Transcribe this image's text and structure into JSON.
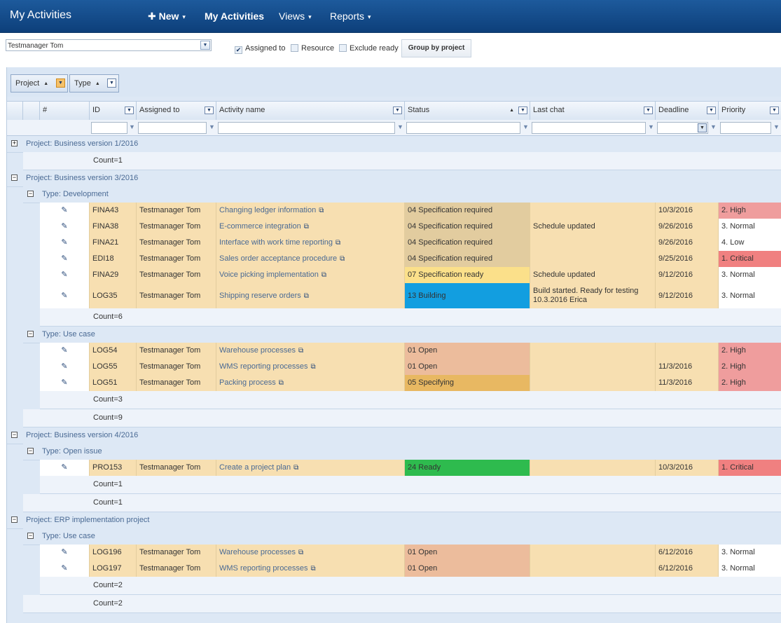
{
  "app": {
    "title": "My Activities",
    "nav": [
      {
        "label": "New",
        "icon": "plus-icon",
        "caret": "▾"
      },
      {
        "label": "My Activities"
      },
      {
        "label": "Views",
        "caret": "▾"
      },
      {
        "label": "Reports",
        "caret": "▾"
      }
    ]
  },
  "toolbar": {
    "user_select": "Testmanager Tom",
    "assigned_to": {
      "label": "Assigned to",
      "checked": true
    },
    "resource": {
      "label": "Resource",
      "checked": false
    },
    "exclude_ready": {
      "label": "Exclude ready",
      "checked": false
    },
    "group_button": "Group by project"
  },
  "grouping": [
    {
      "label": "Project"
    },
    {
      "label": "Type"
    }
  ],
  "columns": {
    "hash": "#",
    "id": "ID",
    "assigned": "Assigned to",
    "activity": "Activity name",
    "status": "Status",
    "lastchat": "Last chat",
    "deadline": "Deadline",
    "priority": "Priority"
  },
  "groups": [
    {
      "label": "Project: Business version 1/2016",
      "expanded": false,
      "count": "Count=1"
    },
    {
      "label": "Project: Business version 3/2016",
      "expanded": true,
      "count": "Count=9",
      "types": [
        {
          "label": "Type: Development",
          "count": "Count=6",
          "rows": [
            {
              "id": "FINA43",
              "assigned": "Testmanager Tom",
              "activity": "Changing ledger information",
              "status": "04 Specification required",
              "lastchat": "",
              "deadline": "10/3/2016",
              "priority": "2. High"
            },
            {
              "id": "FINA38",
              "assigned": "Testmanager Tom",
              "activity": "E-commerce integration",
              "status": "04 Specification required",
              "lastchat": "Schedule updated",
              "deadline": "9/26/2016",
              "priority": "3. Normal"
            },
            {
              "id": "FINA21",
              "assigned": "Testmanager Tom",
              "activity": "Interface with work time reporting",
              "status": "04 Specification required",
              "lastchat": "",
              "deadline": "9/26/2016",
              "priority": "4. Low"
            },
            {
              "id": "EDI18",
              "assigned": "Testmanager Tom",
              "activity": "Sales order acceptance procedure",
              "status": "04 Specification required",
              "lastchat": "",
              "deadline": "9/25/2016",
              "priority": "1. Critical"
            },
            {
              "id": "FINA29",
              "assigned": "Testmanager Tom",
              "activity": "Voice picking implementation",
              "status": "07 Specification ready",
              "lastchat": "Schedule updated",
              "deadline": "9/12/2016",
              "priority": "3. Normal"
            },
            {
              "id": "LOG35",
              "assigned": "Testmanager Tom",
              "activity": "Shipping reserve orders",
              "status": "13 Building",
              "lastchat": "Build started. Ready for testing 10.3.2016 Erica",
              "deadline": "9/12/2016",
              "priority": "3. Normal"
            }
          ]
        },
        {
          "label": "Type: Use case",
          "count": "Count=3",
          "rows": [
            {
              "id": "LOG54",
              "assigned": "Testmanager Tom",
              "activity": "Warehouse processes",
              "status": "01 Open",
              "lastchat": "",
              "deadline": "",
              "priority": "2. High"
            },
            {
              "id": "LOG55",
              "assigned": "Testmanager Tom",
              "activity": "WMS reporting processes",
              "status": "01 Open",
              "lastchat": "",
              "deadline": "11/3/2016",
              "priority": "2. High"
            },
            {
              "id": "LOG51",
              "assigned": "Testmanager Tom",
              "activity": "Packing process",
              "status": "05 Specifying",
              "lastchat": "",
              "deadline": "11/3/2016",
              "priority": "2. High"
            }
          ]
        }
      ]
    },
    {
      "label": "Project: Business version 4/2016",
      "expanded": true,
      "count": "Count=1",
      "types": [
        {
          "label": "Type: Open issue",
          "count": "Count=1",
          "rows": [
            {
              "id": "PRO153",
              "assigned": "Testmanager Tom",
              "activity": "Create a project plan",
              "status": "24 Ready",
              "lastchat": "",
              "deadline": "10/3/2016",
              "priority": "1. Critical"
            }
          ]
        }
      ]
    },
    {
      "label": "Project: ERP implementation project",
      "expanded": true,
      "count": "Count=2",
      "types": [
        {
          "label": "Type: Use case",
          "count": "Count=2",
          "rows": [
            {
              "id": "LOG196",
              "assigned": "Testmanager Tom",
              "activity": "Warehouse processes",
              "status": "01 Open",
              "lastchat": "",
              "deadline": "6/12/2016",
              "priority": "3. Normal"
            },
            {
              "id": "LOG197",
              "assigned": "Testmanager Tom",
              "activity": "WMS reporting processes",
              "status": "01 Open",
              "lastchat": "",
              "deadline": "6/12/2016",
              "priority": "3. Normal"
            }
          ]
        }
      ]
    }
  ],
  "status_colors": {
    "01 Open": "#ecbc9c",
    "04 Specification required": "#e2cc9f",
    "05 Specifying": "#e8b862",
    "07 Specification ready": "#fbe08a",
    "13 Building": "#129ee0",
    "24 Ready": "#2ebb4e"
  },
  "priority_colors": {
    "1. Critical": "#f08080",
    "2. High": "#ef9d9d",
    "3. Normal": "#ffffff",
    "4. Low": "#ffffff"
  }
}
